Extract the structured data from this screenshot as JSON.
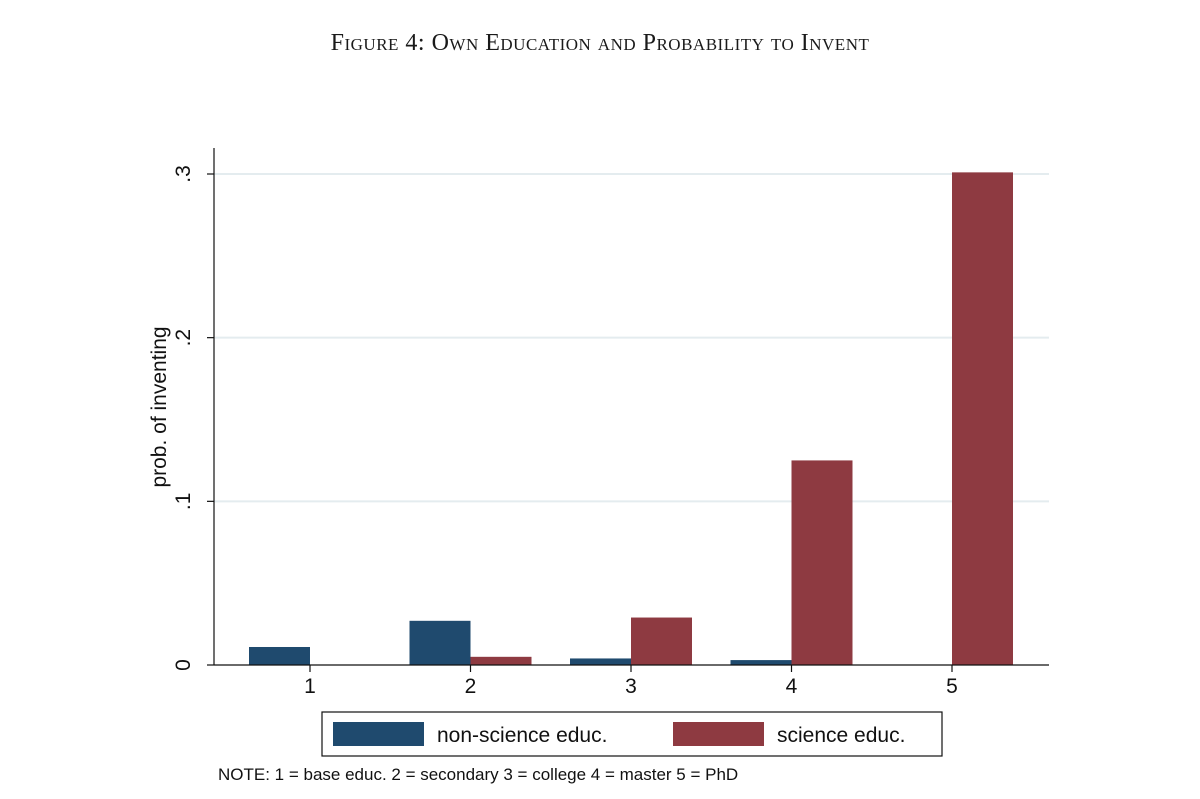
{
  "figure": {
    "title": "Figure 4: Own Education and Probability to Invent",
    "note": "NOTE: 1 = base educ. 2 = secondary 3 = college 4 = master 5 = PhD"
  },
  "chart_data": {
    "type": "bar",
    "categories": [
      "1",
      "2",
      "3",
      "4",
      "5"
    ],
    "series": [
      {
        "name": "non-science educ.",
        "color": "#1f4a6e",
        "values": [
          0.011,
          0.027,
          0.004,
          0.003,
          0.0
        ]
      },
      {
        "name": "science educ.",
        "color": "#8e3a41",
        "values": [
          0.0,
          0.005,
          0.029,
          0.125,
          0.301
        ]
      }
    ],
    "ylabel": "prob. of inventing",
    "xlabel": "",
    "ylim": [
      0,
      0.3
    ],
    "yticks": [
      {
        "value": 0,
        "label": "0"
      },
      {
        "value": 0.1,
        "label": ".1"
      },
      {
        "value": 0.2,
        "label": ".2"
      },
      {
        "value": 0.3,
        "label": ".3"
      }
    ],
    "grid": true,
    "legend_position": "bottom"
  }
}
